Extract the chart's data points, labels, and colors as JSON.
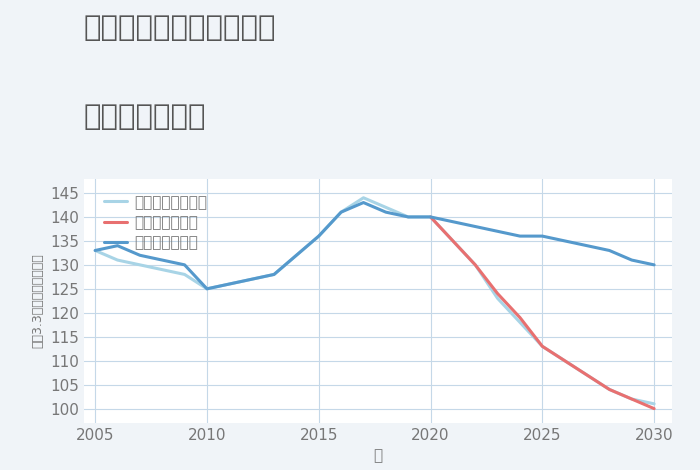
{
  "title_line1": "兵庫県西宮市南昭和町の",
  "title_line2": "土地の価格推移",
  "xlabel": "年",
  "ylabel": "坪（3.3㎡）単価（万円）",
  "background_color": "#f0f4f8",
  "plot_background_color": "#ffffff",
  "grid_color": "#c5d8e8",
  "good_scenario": {
    "label": "グッドシナリオ",
    "color": "#5599cc",
    "years": [
      2005,
      2006,
      2007,
      2008,
      2009,
      2010,
      2011,
      2012,
      2013,
      2014,
      2015,
      2016,
      2017,
      2018,
      2019,
      2020,
      2021,
      2022,
      2023,
      2024,
      2025,
      2026,
      2027,
      2028,
      2029,
      2030
    ],
    "values": [
      133,
      134,
      132,
      131,
      130,
      125,
      126,
      127,
      128,
      132,
      136,
      141,
      143,
      141,
      140,
      140,
      139,
      138,
      137,
      136,
      136,
      135,
      134,
      133,
      131,
      130
    ]
  },
  "bad_scenario": {
    "label": "バッドシナリオ",
    "color": "#e87070",
    "years": [
      2020,
      2021,
      2022,
      2023,
      2024,
      2025,
      2026,
      2027,
      2028,
      2029,
      2030
    ],
    "values": [
      140,
      135,
      130,
      124,
      119,
      113,
      110,
      107,
      104,
      102,
      100
    ]
  },
  "normal_scenario": {
    "label": "ノーマルシナリオ",
    "color": "#a8d4e6",
    "years": [
      2005,
      2006,
      2007,
      2008,
      2009,
      2010,
      2011,
      2012,
      2013,
      2014,
      2015,
      2016,
      2017,
      2018,
      2019,
      2020,
      2021,
      2022,
      2023,
      2024,
      2025,
      2026,
      2027,
      2028,
      2029,
      2030
    ],
    "values": [
      133,
      131,
      130,
      129,
      128,
      125,
      126,
      127,
      128,
      132,
      136,
      141,
      144,
      142,
      140,
      140,
      135,
      130,
      123,
      118,
      113,
      110,
      107,
      104,
      102,
      101
    ]
  },
  "ylim": [
    97,
    148
  ],
  "yticks": [
    100,
    105,
    110,
    115,
    120,
    125,
    130,
    135,
    140,
    145
  ],
  "xlim": [
    2004.5,
    2030.8
  ],
  "xticks": [
    2005,
    2010,
    2015,
    2020,
    2025,
    2030
  ],
  "title_fontsize": 21,
  "axis_fontsize": 11,
  "legend_fontsize": 11,
  "tick_color": "#777777",
  "title_color": "#555555",
  "linewidth": 2.2
}
